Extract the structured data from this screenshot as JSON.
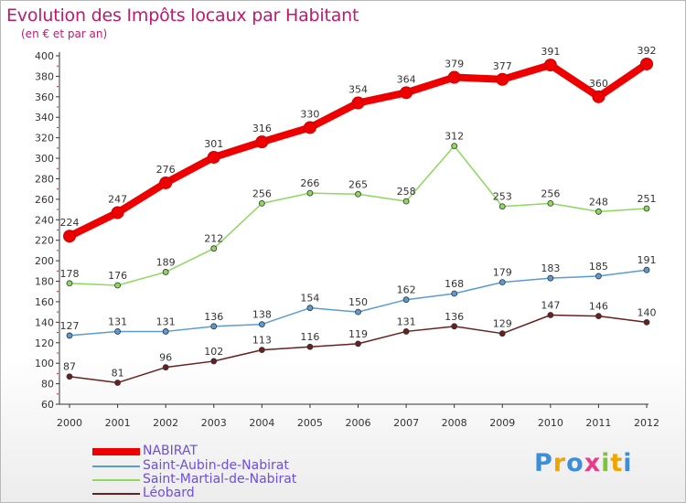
{
  "header": {
    "title": "Evolution des Impôts locaux par Habitant",
    "subtitle": "(en € et par an)"
  },
  "chart_data": {
    "type": "line",
    "x": [
      "2000",
      "2001",
      "2002",
      "2003",
      "2004",
      "2005",
      "2006",
      "2007",
      "2008",
      "2009",
      "2010",
      "2011",
      "2012"
    ],
    "ylim": [
      60,
      400
    ],
    "yticks": [
      60,
      80,
      100,
      120,
      140,
      160,
      180,
      200,
      220,
      240,
      260,
      280,
      300,
      320,
      340,
      360,
      380,
      400
    ],
    "grid": false,
    "legend_position": "bottom-left",
    "series": [
      {
        "name": "NABIRAT",
        "color": "#ee0000",
        "values": [
          224,
          247,
          276,
          301,
          316,
          330,
          354,
          364,
          379,
          377,
          391,
          360,
          392
        ]
      },
      {
        "name": "Saint-Aubin-de-Nabirat",
        "color": "#5b9bd5",
        "values": [
          127,
          131,
          131,
          136,
          138,
          154,
          150,
          162,
          168,
          179,
          183,
          185,
          191
        ]
      },
      {
        "name": "Saint-Martial-de-Nabirat",
        "color": "#8ed85e",
        "values": [
          178,
          176,
          189,
          212,
          256,
          266,
          265,
          258,
          312,
          253,
          256,
          248,
          251
        ]
      },
      {
        "name": "Léobard",
        "color": "#6b1e1e",
        "values": [
          87,
          81,
          96,
          102,
          113,
          116,
          119,
          131,
          136,
          129,
          147,
          146,
          140
        ]
      }
    ]
  },
  "legend_label_color": "#6d4fd8",
  "logo": {
    "letters": [
      "P",
      "r",
      "o",
      "x",
      "i",
      "t",
      "i"
    ],
    "colors": [
      "#3a8fd8",
      "#f0a400",
      "#3a8fd8",
      "#e83b8a",
      "#7cc43c",
      "#f0a400",
      "#3a8fd8"
    ]
  }
}
